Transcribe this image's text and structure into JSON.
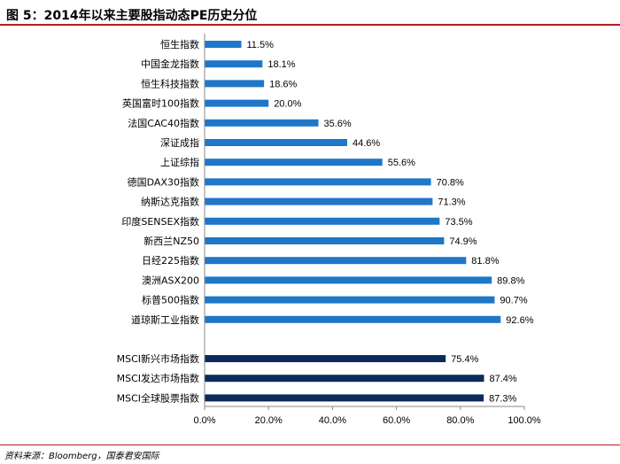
{
  "header": {
    "title": "图 5：2014年以来主要股指动态PE历史分位"
  },
  "source": "资料来源：Bloomberg，国泰君安国际",
  "colors": {
    "bar_primary": "#1f77c8",
    "bar_msci": "#0d2a5c",
    "title_rule": "#b71c1c"
  },
  "chart_data": {
    "type": "bar",
    "orientation": "horizontal",
    "xlim": [
      0,
      100
    ],
    "x_ticks": [
      "0.0%",
      "20.0%",
      "40.0%",
      "60.0%",
      "80.0%",
      "100.0%"
    ],
    "grid": false,
    "legend": "none",
    "groups": [
      {
        "name": "",
        "color": "#1f77c8",
        "categories": [
          "恒生指数",
          "中国金龙指数",
          "恒生科技指数",
          "英国富时100指数",
          "法国CAC40指数",
          "深证成指",
          "上证综指",
          "德国DAX30指数",
          "纳斯达克指数",
          "印度SENSEX指数",
          "新西兰NZ50",
          "日经225指数",
          "澳洲ASX200",
          "标普500指数",
          "道琼斯工业指数"
        ],
        "values": [
          11.5,
          18.1,
          18.6,
          20.0,
          35.6,
          44.6,
          55.6,
          70.8,
          71.3,
          73.5,
          74.9,
          81.8,
          89.8,
          90.7,
          92.6
        ],
        "labels": [
          "11.5%",
          "18.1%",
          "18.6%",
          "20.0%",
          "35.6%",
          "44.6%",
          "55.6%",
          "70.8%",
          "71.3%",
          "73.5%",
          "74.9%",
          "81.8%",
          "89.8%",
          "90.7%",
          "92.6%"
        ]
      },
      {
        "name": "",
        "color": "#0d2a5c",
        "categories": [
          "MSCI新兴市场指数",
          "MSCI发达市场指数",
          "MSCI全球股票指数"
        ],
        "values": [
          75.4,
          87.4,
          87.3
        ],
        "labels": [
          "75.4%",
          "87.4%",
          "87.3%"
        ]
      }
    ]
  }
}
